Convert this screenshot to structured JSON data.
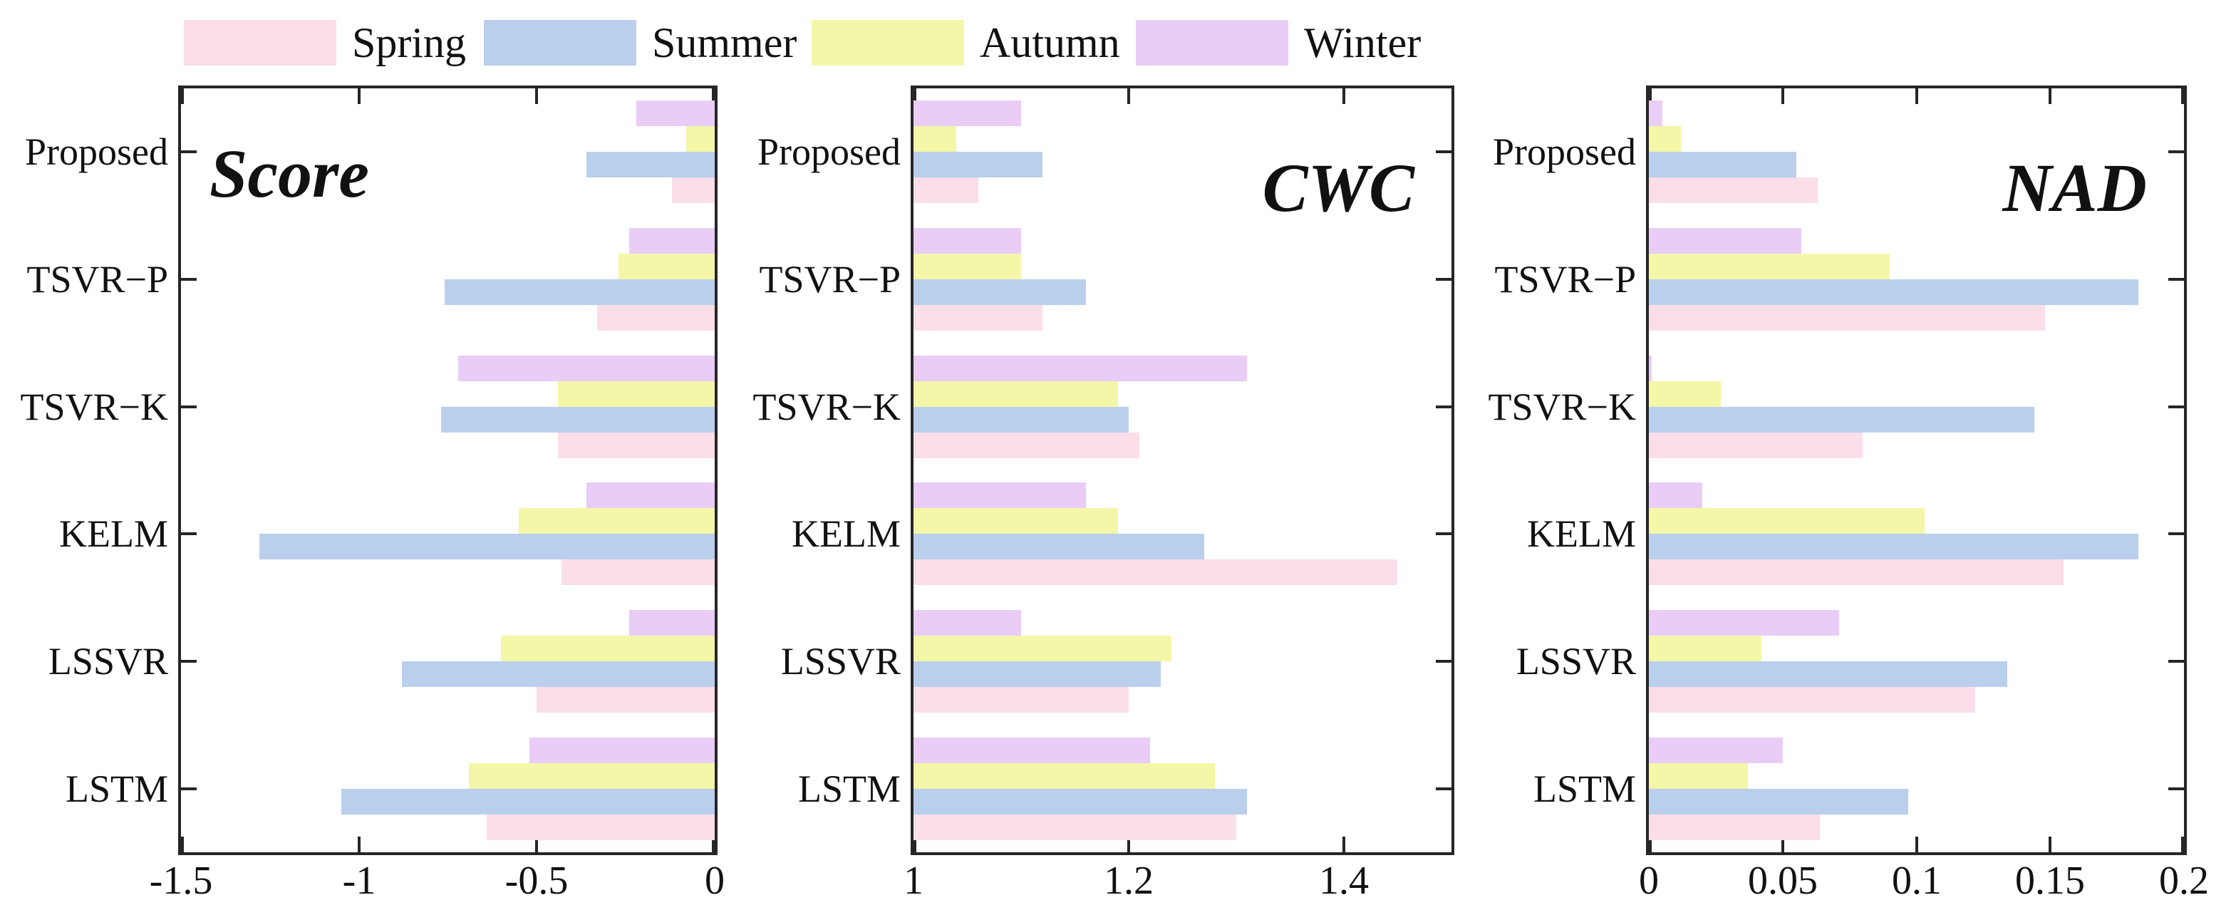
{
  "legend": {
    "position": "top",
    "items": [
      {
        "label": "Spring",
        "color": "#fadee9"
      },
      {
        "label": "Summer",
        "color": "#b9cfec"
      },
      {
        "label": "Autumn",
        "color": "#f4f6a8"
      },
      {
        "label": "Winter",
        "color": "#e9cdf6"
      }
    ]
  },
  "chart_data": [
    {
      "type": "bar",
      "orientation": "horizontal",
      "title": "Score",
      "title_pos": "left",
      "grid": false,
      "bars_anchor": "right",
      "xlim": [
        -1.5,
        0
      ],
      "xticks": [
        {
          "value": -1.5,
          "label": "-1.5"
        },
        {
          "value": -1.0,
          "label": "-1"
        },
        {
          "value": -0.5,
          "label": "-0.5"
        },
        {
          "value": 0.0,
          "label": "0"
        }
      ],
      "categories": [
        "Proposed",
        "TSVR−P",
        "TSVR−K",
        "KELM",
        "LSSVR",
        "LSTM"
      ],
      "series_display_order_top_to_bottom": [
        "Winter",
        "Autumn",
        "Summer",
        "Spring"
      ],
      "series": [
        {
          "name": "Spring",
          "values": [
            -0.12,
            -0.33,
            -0.44,
            -0.43,
            -0.5,
            -0.64
          ]
        },
        {
          "name": "Summer",
          "values": [
            -0.36,
            -0.76,
            -0.77,
            -1.28,
            -0.88,
            -1.05
          ]
        },
        {
          "name": "Autumn",
          "values": [
            -0.08,
            -0.27,
            -0.44,
            -0.55,
            -0.6,
            -0.69
          ]
        },
        {
          "name": "Winter",
          "values": [
            -0.22,
            -0.24,
            -0.72,
            -0.36,
            -0.24,
            -0.52
          ]
        }
      ]
    },
    {
      "type": "bar",
      "orientation": "horizontal",
      "title": "CWC",
      "title_pos": "right",
      "grid": false,
      "bars_anchor": "left",
      "xlim": [
        1.0,
        1.5
      ],
      "xticks": [
        {
          "value": 1.0,
          "label": "1"
        },
        {
          "value": 1.2,
          "label": "1.2"
        },
        {
          "value": 1.4,
          "label": "1.4"
        }
      ],
      "categories": [
        "Proposed",
        "TSVR−P",
        "TSVR−K",
        "KELM",
        "LSSVR",
        "LSTM"
      ],
      "series_display_order_top_to_bottom": [
        "Winter",
        "Autumn",
        "Summer",
        "Spring"
      ],
      "series": [
        {
          "name": "Spring",
          "values": [
            1.06,
            1.12,
            1.21,
            1.45,
            1.2,
            1.3
          ]
        },
        {
          "name": "Summer",
          "values": [
            1.12,
            1.16,
            1.2,
            1.27,
            1.23,
            1.31
          ]
        },
        {
          "name": "Autumn",
          "values": [
            1.04,
            1.1,
            1.19,
            1.19,
            1.24,
            1.28
          ]
        },
        {
          "name": "Winter",
          "values": [
            1.1,
            1.1,
            1.31,
            1.16,
            1.1,
            1.22
          ]
        }
      ]
    },
    {
      "type": "bar",
      "orientation": "horizontal",
      "title": "NAD",
      "title_pos": "right",
      "grid": false,
      "bars_anchor": "left",
      "xlim": [
        0,
        0.2
      ],
      "xticks": [
        {
          "value": 0.0,
          "label": "0"
        },
        {
          "value": 0.05,
          "label": "0.05"
        },
        {
          "value": 0.1,
          "label": "0.1"
        },
        {
          "value": 0.15,
          "label": "0.15"
        },
        {
          "value": 0.2,
          "label": "0.2"
        }
      ],
      "categories": [
        "Proposed",
        "TSVR−P",
        "TSVR−K",
        "KELM",
        "LSSVR",
        "LSTM"
      ],
      "series_display_order_top_to_bottom": [
        "Winter",
        "Autumn",
        "Summer",
        "Spring"
      ],
      "series": [
        {
          "name": "Spring",
          "values": [
            0.063,
            0.148,
            0.08,
            0.155,
            0.122,
            0.064
          ]
        },
        {
          "name": "Summer",
          "values": [
            0.055,
            0.183,
            0.144,
            0.183,
            0.134,
            0.097
          ]
        },
        {
          "name": "Autumn",
          "values": [
            0.012,
            0.09,
            0.027,
            0.103,
            0.042,
            0.037
          ]
        },
        {
          "name": "Winter",
          "values": [
            0.005,
            0.057,
            0.001,
            0.02,
            0.071,
            0.05
          ]
        }
      ]
    }
  ]
}
